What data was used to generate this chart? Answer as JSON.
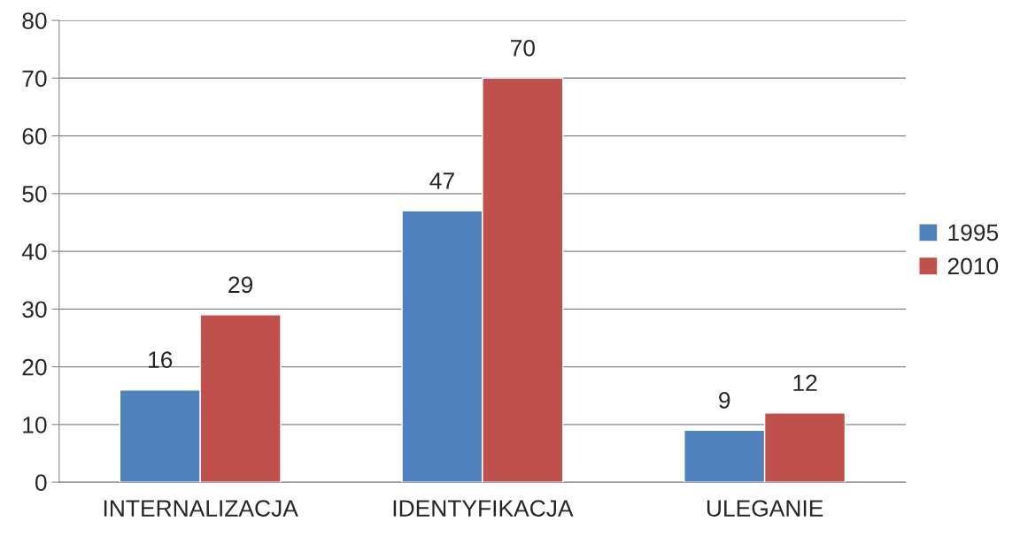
{
  "chart_data": {
    "type": "bar",
    "categories": [
      "INTERNALIZACJA",
      "IDENTYFIKACJA",
      "ULEGANIE"
    ],
    "series": [
      {
        "name": "1995",
        "color": "#4f81bd",
        "values": [
          16,
          47,
          9
        ]
      },
      {
        "name": "2010",
        "color": "#c0504d",
        "values": [
          29,
          70,
          12
        ]
      }
    ],
    "ylim": [
      0,
      80
    ],
    "yticks": [
      0,
      10,
      20,
      30,
      40,
      50,
      60,
      70,
      80
    ],
    "grid": "y",
    "legend": "right",
    "data_labels": true
  }
}
